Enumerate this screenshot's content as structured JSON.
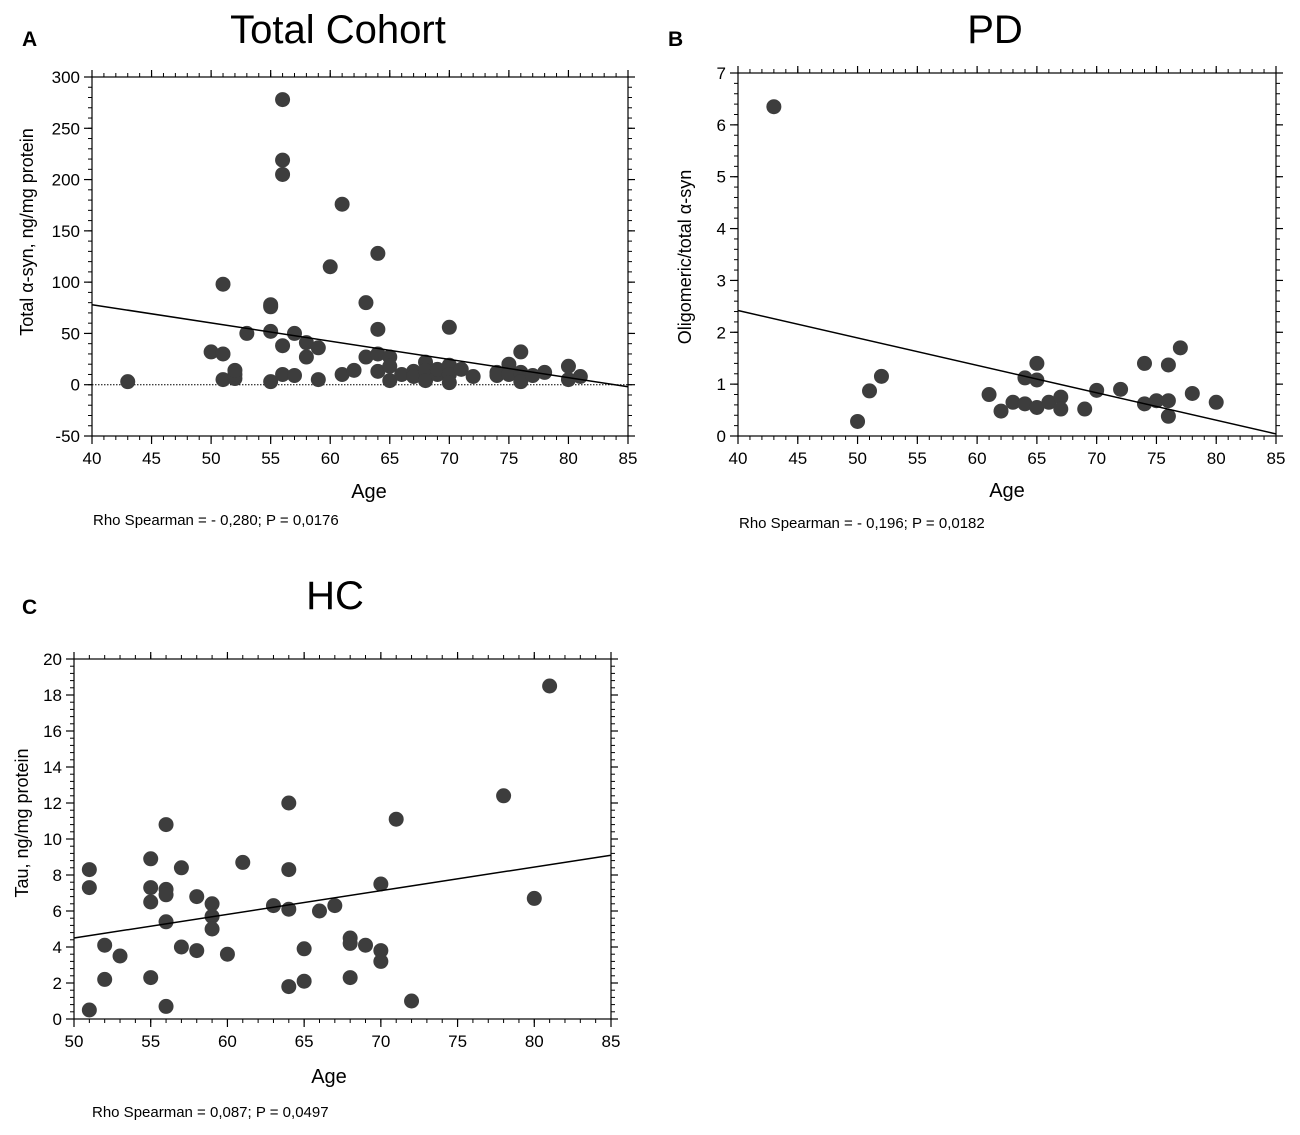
{
  "colors": {
    "point": "#3d3d3d",
    "line": "#000000",
    "axis": "#000000",
    "text": "#000000"
  },
  "chart_data": [
    {
      "type": "scatter",
      "panel_label": "A",
      "title": "Total Cohort",
      "xlabel": "Age",
      "ylabel": "Total α-syn, ng/mg protein",
      "xlim": [
        40,
        85
      ],
      "ylim": [
        -50,
        300
      ],
      "xticks": [
        40,
        45,
        50,
        55,
        60,
        65,
        70,
        75,
        80,
        85
      ],
      "yticks": [
        -50,
        0,
        50,
        100,
        150,
        200,
        250,
        300
      ],
      "zero_line": true,
      "stat": "Rho Spearman = - 0,280; P = 0,0176",
      "regression": {
        "x": [
          40,
          85
        ],
        "y": [
          78,
          -2
        ]
      },
      "points": [
        [
          43,
          3
        ],
        [
          50,
          32
        ],
        [
          51,
          30
        ],
        [
          51,
          5
        ],
        [
          51,
          98
        ],
        [
          52,
          6
        ],
        [
          52,
          10
        ],
        [
          52,
          14
        ],
        [
          53,
          50
        ],
        [
          55,
          76
        ],
        [
          55,
          78
        ],
        [
          55,
          52
        ],
        [
          55,
          3
        ],
        [
          56,
          278
        ],
        [
          56,
          219
        ],
        [
          56,
          205
        ],
        [
          56,
          38
        ],
        [
          56,
          10
        ],
        [
          57,
          50
        ],
        [
          57,
          9
        ],
        [
          58,
          41
        ],
        [
          58,
          27
        ],
        [
          59,
          36
        ],
        [
          59,
          5
        ],
        [
          60,
          115
        ],
        [
          61,
          176
        ],
        [
          61,
          10
        ],
        [
          62,
          14
        ],
        [
          63,
          80
        ],
        [
          63,
          27
        ],
        [
          64,
          128
        ],
        [
          64,
          54
        ],
        [
          64,
          30
        ],
        [
          64,
          13
        ],
        [
          65,
          27
        ],
        [
          65,
          18
        ],
        [
          65,
          4
        ],
        [
          66,
          10
        ],
        [
          67,
          13
        ],
        [
          67,
          8
        ],
        [
          68,
          22
        ],
        [
          68,
          14
        ],
        [
          68,
          4
        ],
        [
          69,
          10
        ],
        [
          69,
          15
        ],
        [
          70,
          56
        ],
        [
          70,
          19
        ],
        [
          70,
          10
        ],
        [
          70,
          2
        ],
        [
          71,
          15
        ],
        [
          72,
          8
        ],
        [
          74,
          12
        ],
        [
          74,
          9
        ],
        [
          75,
          20
        ],
        [
          75,
          10
        ],
        [
          76,
          32
        ],
        [
          76,
          12
        ],
        [
          76,
          3
        ],
        [
          77,
          9
        ],
        [
          78,
          12
        ],
        [
          80,
          18
        ],
        [
          80,
          5
        ],
        [
          81,
          8
        ]
      ]
    },
    {
      "type": "scatter",
      "panel_label": "B",
      "title": "PD",
      "xlabel": "Age",
      "ylabel": "Oligomeric/total α-syn",
      "xlim": [
        40,
        85
      ],
      "ylim": [
        0,
        7
      ],
      "xticks": [
        40,
        45,
        50,
        55,
        60,
        65,
        70,
        75,
        80,
        85
      ],
      "yticks": [
        0,
        1,
        2,
        3,
        4,
        5,
        6,
        7
      ],
      "zero_line": false,
      "stat": "Rho Spearman = - 0,196; P = 0,0182",
      "regression": {
        "x": [
          40,
          85
        ],
        "y": [
          2.42,
          0.04
        ]
      },
      "points": [
        [
          43,
          6.35
        ],
        [
          50,
          0.28
        ],
        [
          51,
          0.87
        ],
        [
          52,
          1.15
        ],
        [
          61,
          0.8
        ],
        [
          62,
          0.48
        ],
        [
          63,
          0.65
        ],
        [
          64,
          1.12
        ],
        [
          64,
          0.62
        ],
        [
          65,
          1.4
        ],
        [
          65,
          1.08
        ],
        [
          65,
          0.55
        ],
        [
          66,
          0.65
        ],
        [
          67,
          0.75
        ],
        [
          67,
          0.52
        ],
        [
          69,
          0.52
        ],
        [
          70,
          0.88
        ],
        [
          72,
          0.9
        ],
        [
          74,
          1.4
        ],
        [
          74,
          0.62
        ],
        [
          75,
          0.68
        ],
        [
          76,
          1.37
        ],
        [
          76,
          0.68
        ],
        [
          76,
          0.38
        ],
        [
          77,
          1.7
        ],
        [
          78,
          0.82
        ],
        [
          80,
          0.65
        ]
      ]
    },
    {
      "type": "scatter",
      "panel_label": "C",
      "title": "HC",
      "xlabel": "Age",
      "ylabel": "Tau, ng/mg protein",
      "xlim": [
        50,
        85
      ],
      "ylim": [
        0,
        20
      ],
      "xticks": [
        50,
        55,
        60,
        65,
        70,
        75,
        80,
        85
      ],
      "yticks": [
        0,
        2,
        4,
        6,
        8,
        10,
        12,
        14,
        16,
        18,
        20
      ],
      "zero_line": false,
      "stat": "Rho Spearman = 0,087; P = 0,0497",
      "regression": {
        "x": [
          50,
          85
        ],
        "y": [
          4.5,
          9.1
        ]
      },
      "points": [
        [
          51,
          8.3
        ],
        [
          51,
          7.3
        ],
        [
          51,
          0.5
        ],
        [
          52,
          4.1
        ],
        [
          52,
          2.2
        ],
        [
          53,
          3.5
        ],
        [
          55,
          8.9
        ],
        [
          55,
          7.3
        ],
        [
          55,
          6.5
        ],
        [
          55,
          2.3
        ],
        [
          56,
          10.8
        ],
        [
          56,
          7.2
        ],
        [
          56,
          6.9
        ],
        [
          56,
          5.4
        ],
        [
          56,
          0.7
        ],
        [
          57,
          8.4
        ],
        [
          57,
          4.0
        ],
        [
          58,
          6.8
        ],
        [
          58,
          3.8
        ],
        [
          59,
          6.4
        ],
        [
          59,
          5.7
        ],
        [
          59,
          5.0
        ],
        [
          60,
          3.6
        ],
        [
          61,
          8.7
        ],
        [
          63,
          6.3
        ],
        [
          64,
          12.0
        ],
        [
          64,
          8.3
        ],
        [
          64,
          6.1
        ],
        [
          64,
          1.8
        ],
        [
          65,
          3.9
        ],
        [
          65,
          2.1
        ],
        [
          66,
          6.0
        ],
        [
          67,
          6.3
        ],
        [
          68,
          4.5
        ],
        [
          68,
          4.2
        ],
        [
          68,
          2.3
        ],
        [
          69,
          4.1
        ],
        [
          70,
          7.5
        ],
        [
          70,
          3.8
        ],
        [
          70,
          3.2
        ],
        [
          71,
          11.1
        ],
        [
          72,
          1.0
        ],
        [
          78,
          12.4
        ],
        [
          80,
          6.7
        ],
        [
          81,
          18.5
        ]
      ]
    }
  ]
}
